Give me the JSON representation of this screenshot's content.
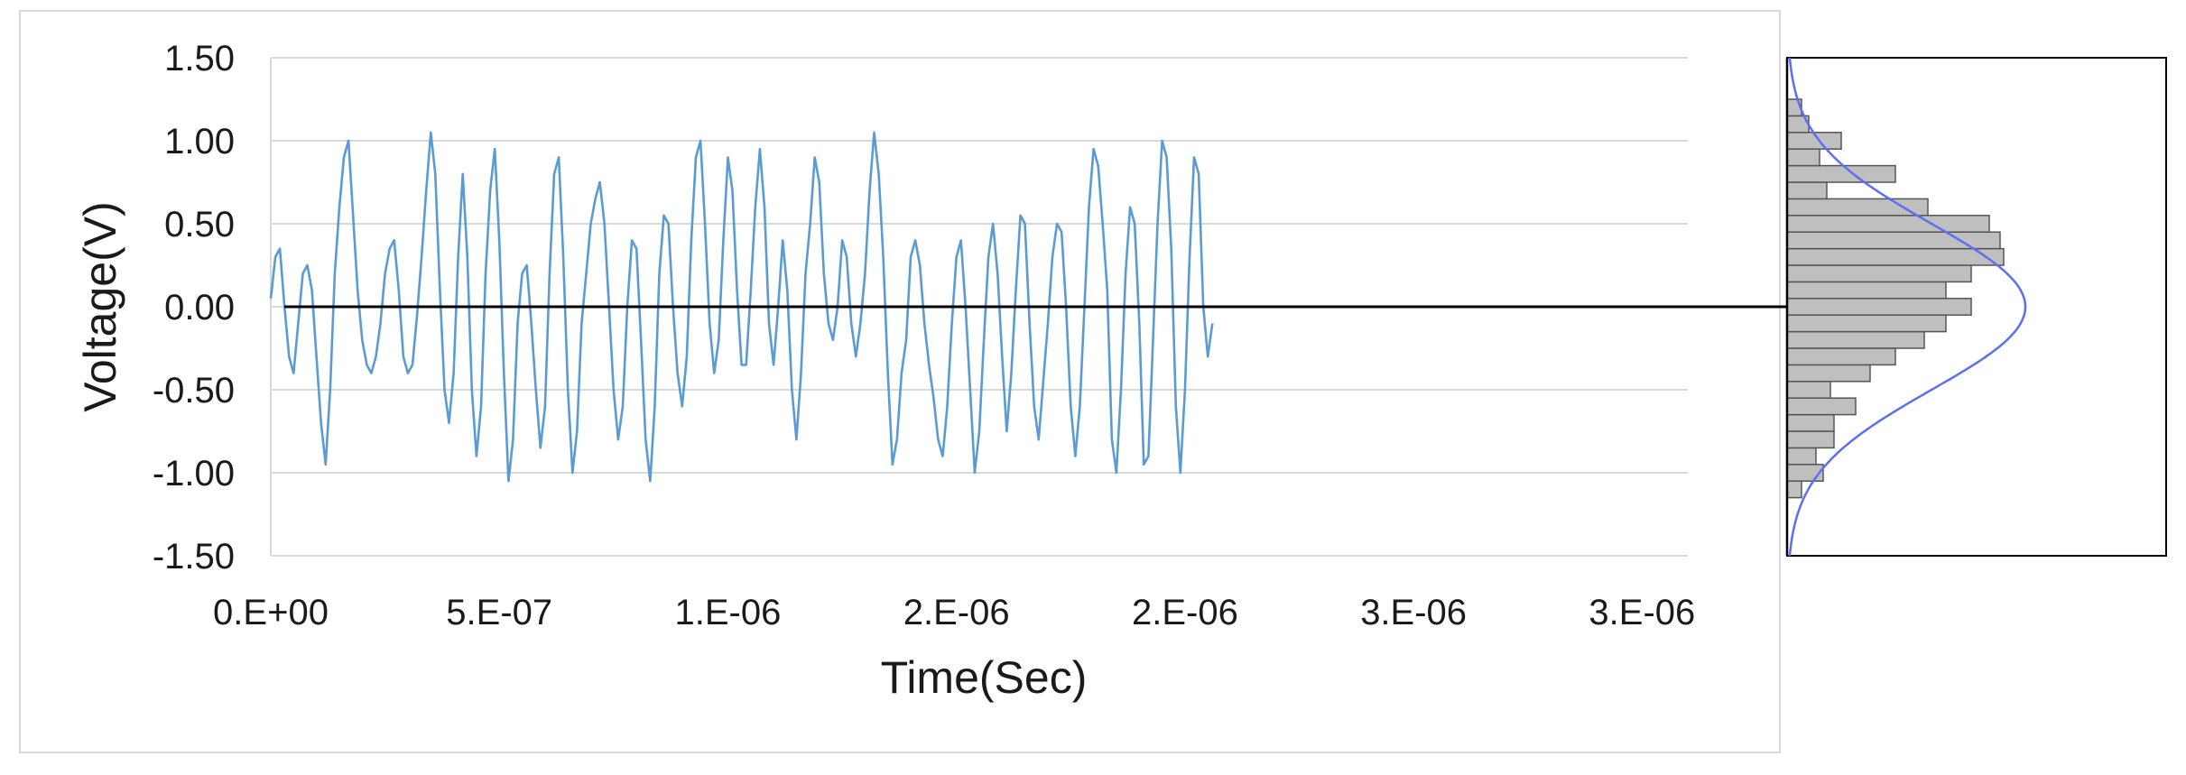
{
  "chart_data": [
    {
      "type": "line",
      "title": "",
      "xlabel": "Time(Sec)",
      "ylabel": "Voltage(V)",
      "xlim": [
        0,
        3.1e-06
      ],
      "ylim": [
        -1.5,
        1.5
      ],
      "grid": "horizontal",
      "x_tick_labels": [
        "0.E+00",
        "5.E-07",
        "1.E-06",
        "2.E-06",
        "2.E-06",
        "3.E-06",
        "3.E-06"
      ],
      "x_tick_values": [
        0,
        5e-07,
        1e-06,
        1.5e-06,
        2e-06,
        2.5e-06,
        3e-06
      ],
      "y_tick_labels": [
        "1.50",
        "1.00",
        "0.50",
        "0.00",
        "-0.50",
        "-1.00",
        "-1.50"
      ],
      "y_tick_values": [
        1.5,
        1.0,
        0.5,
        0.0,
        -0.5,
        -1.0,
        -1.5
      ],
      "series_color": "#5b9bd5",
      "zero_line_color": "#000000",
      "x_start": 0,
      "x_step": 1e-08,
      "series": [
        {
          "values": [
            0.05,
            0.3,
            0.35,
            0.0,
            -0.3,
            -0.4,
            -0.1,
            0.2,
            0.25,
            0.1,
            -0.3,
            -0.7,
            -0.95,
            -0.5,
            0.2,
            0.6,
            0.9,
            1.0,
            0.55,
            0.1,
            -0.2,
            -0.35,
            -0.4,
            -0.3,
            -0.1,
            0.2,
            0.35,
            0.4,
            0.1,
            -0.3,
            -0.4,
            -0.35,
            -0.05,
            0.3,
            0.7,
            1.05,
            0.8,
            0.1,
            -0.5,
            -0.7,
            -0.4,
            0.3,
            0.8,
            0.3,
            -0.5,
            -0.9,
            -0.6,
            0.2,
            0.7,
            0.95,
            0.4,
            -0.4,
            -1.05,
            -0.8,
            -0.1,
            0.2,
            0.25,
            -0.1,
            -0.5,
            -0.85,
            -0.6,
            0.2,
            0.8,
            0.9,
            0.3,
            -0.5,
            -1.0,
            -0.75,
            -0.1,
            0.2,
            0.5,
            0.65,
            0.75,
            0.5,
            0.0,
            -0.5,
            -0.8,
            -0.6,
            0.0,
            0.4,
            0.35,
            -0.2,
            -0.8,
            -1.05,
            -0.6,
            0.2,
            0.55,
            0.5,
            0.0,
            -0.4,
            -0.6,
            -0.3,
            0.4,
            0.9,
            1.0,
            0.5,
            -0.1,
            -0.4,
            -0.2,
            0.4,
            0.9,
            0.7,
            0.1,
            -0.35,
            -0.35,
            0.1,
            0.6,
            0.95,
            0.6,
            -0.1,
            -0.35,
            0.0,
            0.4,
            0.1,
            -0.5,
            -0.8,
            -0.4,
            0.2,
            0.5,
            0.9,
            0.75,
            0.2,
            -0.1,
            -0.2,
            0.0,
            0.4,
            0.3,
            -0.1,
            -0.3,
            -0.1,
            0.2,
            0.7,
            1.05,
            0.8,
            0.3,
            -0.4,
            -0.95,
            -0.8,
            -0.4,
            -0.2,
            0.3,
            0.4,
            0.25,
            -0.1,
            -0.35,
            -0.55,
            -0.8,
            -0.9,
            -0.6,
            -0.1,
            0.3,
            0.4,
            0.0,
            -0.5,
            -1.0,
            -0.75,
            -0.2,
            0.3,
            0.5,
            0.2,
            -0.3,
            -0.75,
            -0.4,
            0.1,
            0.55,
            0.5,
            -0.1,
            -0.6,
            -0.8,
            -0.45,
            -0.1,
            0.3,
            0.5,
            0.45,
            0.0,
            -0.6,
            -0.9,
            -0.6,
            0.0,
            0.6,
            0.95,
            0.85,
            0.5,
            0.1,
            -0.8,
            -1.0,
            -0.5,
            0.2,
            0.6,
            0.5,
            -0.1,
            -0.95,
            -0.9,
            -0.2,
            0.5,
            1.0,
            0.9,
            0.35,
            -0.6,
            -1.0,
            -0.5,
            0.3,
            0.9,
            0.8,
            0.0,
            -0.3,
            -0.1
          ]
        }
      ]
    },
    {
      "type": "bar",
      "orientation": "horizontal",
      "title": "",
      "bin_centers": [
        -1.5,
        -1.4,
        -1.3,
        -1.2,
        -1.1,
        -1.0,
        -0.9,
        -0.8,
        -0.7,
        -0.6,
        -0.5,
        -0.4,
        -0.3,
        -0.2,
        -0.1,
        0.0,
        0.1,
        0.2,
        0.3,
        0.4,
        0.5,
        0.6,
        0.7,
        0.8,
        0.9,
        1.0,
        1.1,
        1.2,
        1.3,
        1.4,
        1.5
      ],
      "values": [
        0,
        0,
        0,
        0,
        0.04,
        0.1,
        0.08,
        0.13,
        0.13,
        0.19,
        0.12,
        0.23,
        0.3,
        0.38,
        0.44,
        0.51,
        0.44,
        0.51,
        0.6,
        0.59,
        0.56,
        0.39,
        0.11,
        0.3,
        0.09,
        0.15,
        0.06,
        0.04,
        0.0,
        0.0,
        0
      ],
      "fit_curve": "gaussian",
      "fit_mean": 0.0,
      "fit_sd": 0.5,
      "bar_fill": "#bfbfbf",
      "bar_stroke": "#555555",
      "fit_color": "#5b6ff5"
    }
  ]
}
